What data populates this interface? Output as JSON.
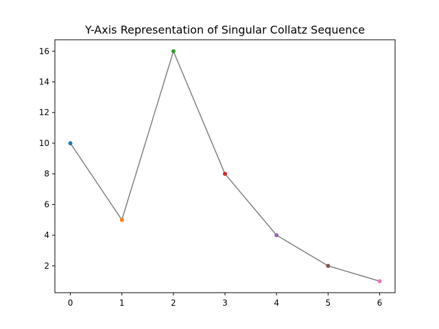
{
  "chart_data": {
    "type": "line",
    "title": "Y-Axis Representation of Singular Collatz Sequence",
    "xlabel": "",
    "ylabel": "",
    "x": [
      0,
      1,
      2,
      3,
      4,
      5,
      6
    ],
    "series": [
      {
        "values": [
          10,
          5,
          16,
          8,
          4,
          2,
          1
        ],
        "line_color": "#808080",
        "point_colors": [
          "#1f77b4",
          "#ff7f0e",
          "#2ca02c",
          "#d62728",
          "#9467bd",
          "#8c564b",
          "#e377c2"
        ]
      }
    ],
    "xlim": [
      -0.3,
      6.3
    ],
    "ylim": [
      0.25,
      16.75
    ],
    "xticks": [
      0,
      1,
      2,
      3,
      4,
      5,
      6
    ],
    "yticks": [
      2,
      4,
      6,
      8,
      10,
      12,
      14,
      16
    ],
    "grid": false,
    "legend": "none"
  }
}
